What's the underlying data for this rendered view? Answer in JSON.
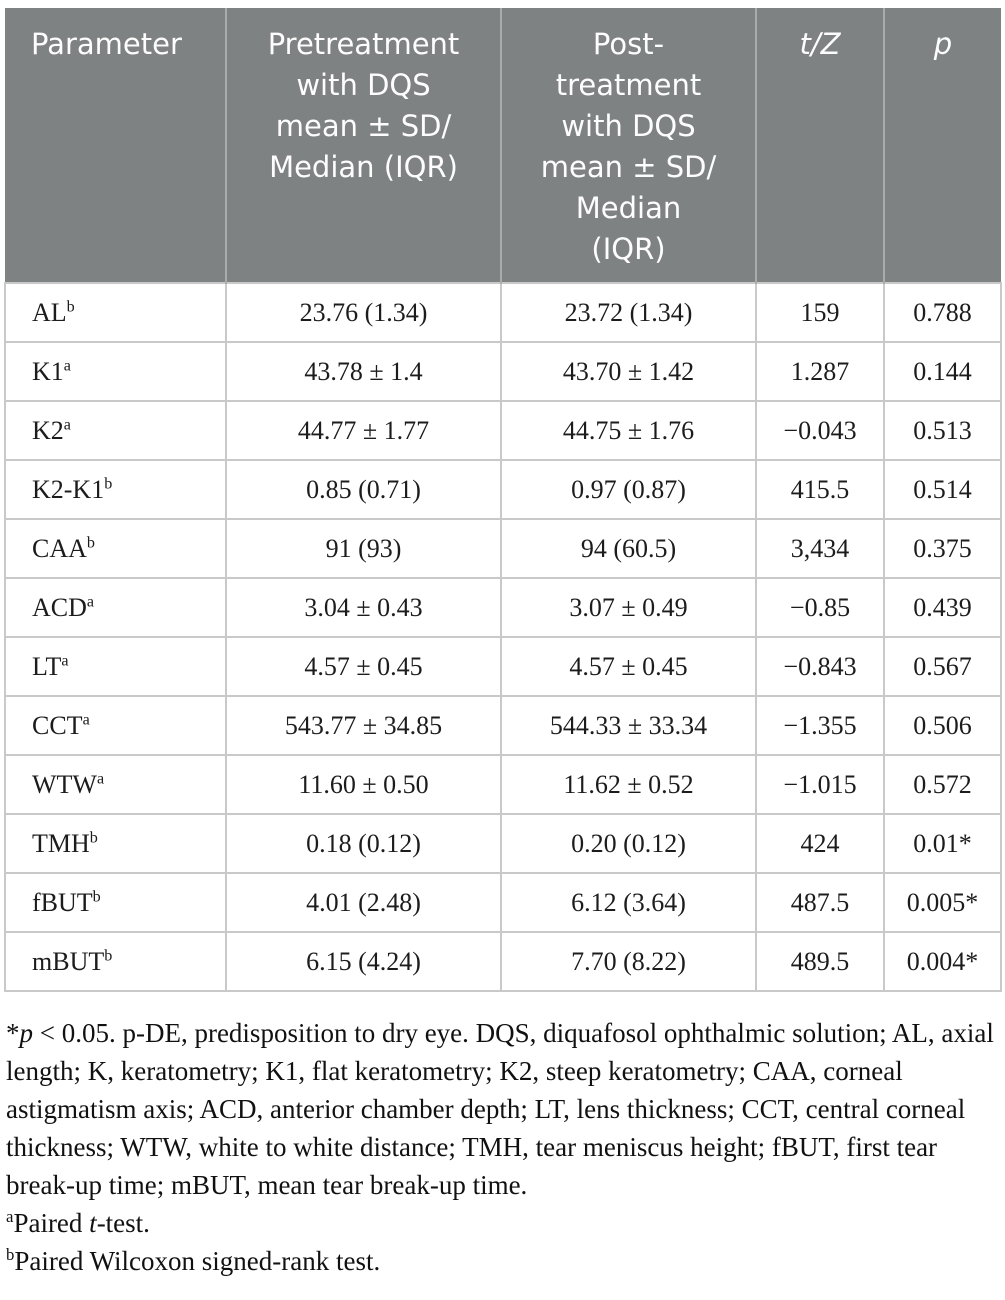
{
  "table": {
    "columns": [
      {
        "label": "Parameter"
      },
      {
        "label": "Pretreatment\nwith DQS\nmean ± SD/\nMedian (IQR)"
      },
      {
        "label": "Post-\ntreatment\nwith DQS\nmean ± SD/\nMedian\n(IQR)"
      },
      {
        "label": "t/Z"
      },
      {
        "label": "p"
      }
    ],
    "rows": [
      {
        "param": "AL",
        "sup": "b",
        "pre": "23.76 (1.34)",
        "post": "23.72 (1.34)",
        "tz": "159",
        "p": "0.788"
      },
      {
        "param": "K1",
        "sup": "a",
        "pre": "43.78 ± 1.4",
        "post": "43.70 ± 1.42",
        "tz": "1.287",
        "p": "0.144"
      },
      {
        "param": "K2",
        "sup": "a",
        "pre": "44.77 ± 1.77",
        "post": "44.75 ± 1.76",
        "tz": "−0.043",
        "p": "0.513"
      },
      {
        "param": "K2-K1",
        "sup": "b",
        "pre": "0.85 (0.71)",
        "post": "0.97 (0.87)",
        "tz": "415.5",
        "p": "0.514"
      },
      {
        "param": "CAA",
        "sup": "b",
        "pre": "91 (93)",
        "post": "94 (60.5)",
        "tz": "3,434",
        "p": "0.375"
      },
      {
        "param": "ACD",
        "sup": "a",
        "pre": "3.04 ± 0.43",
        "post": "3.07 ± 0.49",
        "tz": "−0.85",
        "p": "0.439"
      },
      {
        "param": "LT",
        "sup": "a",
        "pre": "4.57 ± 0.45",
        "post": "4.57 ± 0.45",
        "tz": "−0.843",
        "p": "0.567"
      },
      {
        "param": "CCT",
        "sup": "a",
        "pre": "543.77 ± 34.85",
        "post": "544.33 ± 33.34",
        "tz": "−1.355",
        "p": "0.506"
      },
      {
        "param": "WTW",
        "sup": "a",
        "pre": "11.60 ± 0.50",
        "post": "11.62 ± 0.52",
        "tz": "−1.015",
        "p": "0.572"
      },
      {
        "param": "TMH",
        "sup": "b",
        "pre": "0.18 (0.12)",
        "post": "0.20 (0.12)",
        "tz": "424",
        "p": "0.01*"
      },
      {
        "param": "fBUT",
        "sup": "b",
        "pre": "4.01 (2.48)",
        "post": "6.12 (3.64)",
        "tz": "487.5",
        "p": "0.005*"
      },
      {
        "param": "mBUT",
        "sup": "b",
        "pre": "6.15 (4.24)",
        "post": "7.70 (8.22)",
        "tz": "489.5",
        "p": "0.004*"
      }
    ]
  },
  "footnotes": {
    "significance": {
      "star": "*",
      "p": "p",
      "rest": " < 0.05. p-DE, predisposition to dry eye. DQS, diquafosol ophthalmic solution; AL, axial length; K, keratometry; K1, flat keratometry; K2, steep keratometry; CAA, corneal astigmatism axis; ACD, anterior chamber depth; LT, lens thickness; CCT, central corneal thickness; WTW, white to white distance; TMH, tear meniscus height; fBUT, first tear break-up time; mBUT, mean tear break-up time."
    },
    "a": {
      "sup": "a",
      "pre": "Paired ",
      "italic": "t",
      "rest": "-test."
    },
    "b": {
      "sup": "b",
      "text": "Paired Wilcoxon signed-rank test."
    }
  },
  "colors": {
    "header_bg": "#7f8282",
    "header_text": "#fdfdfd",
    "grid_line": "#c9c9c9",
    "body_text": "#1c1c1c"
  }
}
